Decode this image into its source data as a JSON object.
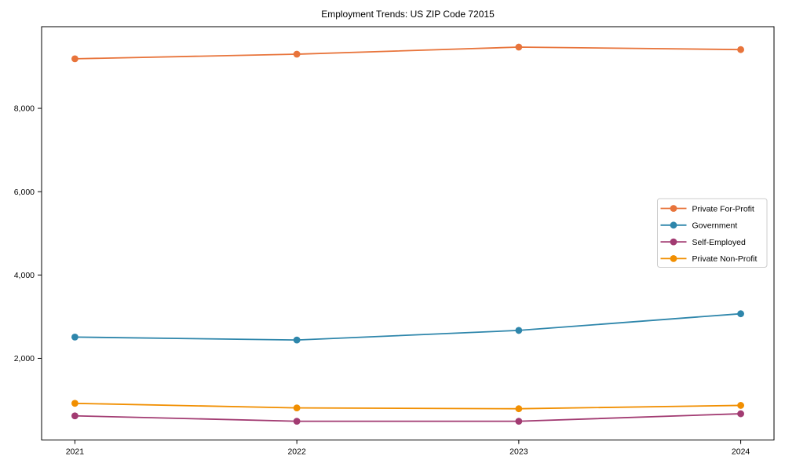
{
  "title": "Employment Trends: US ZIP Code 72015",
  "chart_data": {
    "type": "line",
    "title": "Employment Trends: US ZIP Code 72015",
    "x": [
      2021,
      2022,
      2023,
      2024
    ],
    "xtick_labels": [
      "2021",
      "2022",
      "2023",
      "2024"
    ],
    "yticks": [
      2000,
      4000,
      6000,
      8000
    ],
    "ytick_labels": [
      "2,000",
      "4,000",
      "6,000",
      "8,000"
    ],
    "xlim": [
      2020.85,
      2024.15
    ],
    "ylim": [
      40,
      9960
    ],
    "grid": false,
    "legend_position": "center-right",
    "marker": "circle",
    "series": [
      {
        "name": "Private For-Profit",
        "color": "#E8743B",
        "values": [
          9190,
          9300,
          9470,
          9410
        ]
      },
      {
        "name": "Government",
        "color": "#2E86AB",
        "values": [
          2510,
          2440,
          2670,
          3070
        ]
      },
      {
        "name": "Self-Employed",
        "color": "#A23B72",
        "values": [
          620,
          490,
          490,
          670
        ]
      },
      {
        "name": "Private Non-Profit",
        "color": "#F18F01",
        "values": [
          920,
          810,
          790,
          870
        ]
      }
    ],
    "xlabel": "",
    "ylabel": "",
    "axis_color": "#000000",
    "legend_border_color": "#cccccc"
  }
}
